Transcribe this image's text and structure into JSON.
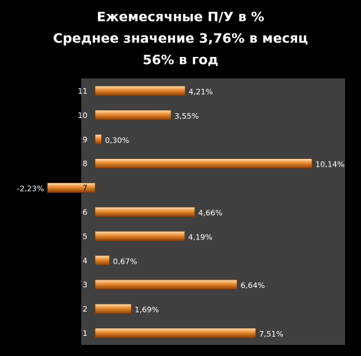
{
  "chart_data": {
    "type": "bar",
    "orientation": "horizontal",
    "title": "Ежемесячные П/У в %",
    "subtitle": [
      "Среднее значение 3,76% в месяц",
      "56% в год"
    ],
    "categories": [
      "1",
      "2",
      "3",
      "4",
      "5",
      "6",
      "7",
      "8",
      "9",
      "10",
      "11"
    ],
    "values": [
      7.51,
      1.69,
      6.64,
      0.67,
      4.19,
      4.66,
      -2.23,
      10.14,
      0.3,
      3.55,
      4.21
    ],
    "value_labels": [
      "7,51%",
      "1,69%",
      "6,64%",
      "0,67%",
      "4,19%",
      "4,66%",
      "-2,23%",
      "10,14%",
      "0,30%",
      "3,55%",
      "4,21%"
    ],
    "color": "#e8892b"
  }
}
